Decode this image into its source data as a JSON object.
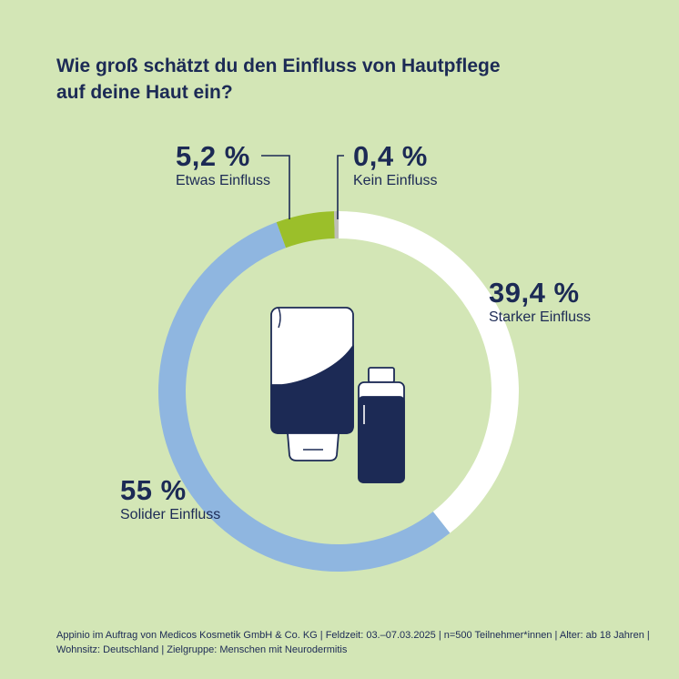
{
  "title_lines": [
    "Wie groß schätzt du den Einfluss von Hautpflege",
    "auf deine Haut ein?"
  ],
  "colors": {
    "background": "#d3e6b6",
    "text": "#1c2a55",
    "ring_gap": "#d3e6b6"
  },
  "chart_data": {
    "type": "donut",
    "slices": [
      {
        "pct_label": "39,4 %",
        "label": "Starker Einfluss",
        "value": 39.4,
        "color": "#ffffff"
      },
      {
        "pct_label": "55 %",
        "label": "Solider Einfluss",
        "value": 55.0,
        "color": "#8fb6e0"
      },
      {
        "pct_label": "5,2 %",
        "label": "Etwas Einfluss",
        "value": 5.2,
        "color": "#9bbf2a"
      },
      {
        "pct_label": "0,4 %",
        "label": "Kein Einfluss",
        "value": 0.4,
        "color": "#bfbfb8"
      }
    ],
    "center_icon": "skincare-tube-and-bottle-icon"
  },
  "footer_lines": [
    "Appinio im Auftrag von Medicos Kosmetik GmbH & Co. KG | Feldzeit: 03.–07.03.2025 | n=500 Teilnehmer*innen | Alter: ab 18 Jahren |",
    "Wohnsitz: Deutschland | Zielgruppe: Menschen mit Neurodermitis"
  ]
}
